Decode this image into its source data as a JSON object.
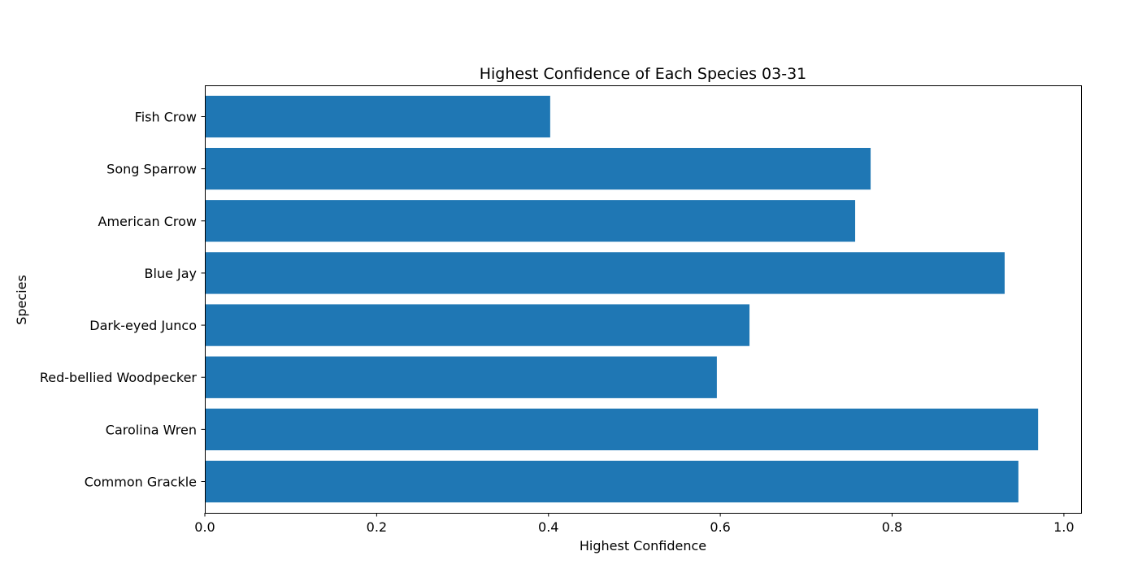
{
  "chart_data": {
    "type": "bar",
    "orientation": "horizontal",
    "title": "Highest Confidence of Each Species 03-31",
    "xlabel": "Highest Confidence",
    "ylabel": "Species",
    "categories": [
      "Common Grackle",
      "Carolina Wren",
      "Red-bellied Woodpecker",
      "Dark-eyed Junco",
      "Blue Jay",
      "American Crow",
      "Song Sparrow",
      "Fish Crow"
    ],
    "values": [
      0.947,
      0.97,
      0.596,
      0.634,
      0.931,
      0.757,
      0.775,
      0.402
    ],
    "xlim": [
      0.0,
      1.02
    ],
    "xticks": [
      "0.0",
      "0.2",
      "0.4",
      "0.6",
      "0.8",
      "1.0"
    ],
    "bar_color": "#1f77b4",
    "grid": false,
    "legend": false
  }
}
